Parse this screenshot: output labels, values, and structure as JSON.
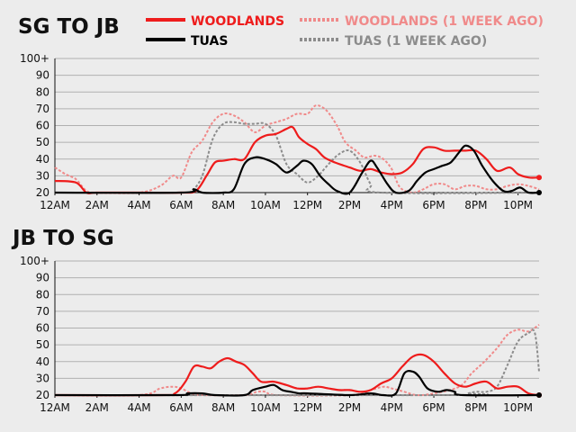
{
  "legend": [
    {
      "label": "WOODLANDS",
      "color": "#ee1c1c",
      "dashed": false
    },
    {
      "label": "WOODLANDS (1 WEEK AGO)",
      "color": "#f08a8a",
      "dashed": true
    },
    {
      "label": "TUAS",
      "color": "#000000",
      "dashed": false
    },
    {
      "label": "TUAS (1 WEEK AGO)",
      "color": "#8c8c8c",
      "dashed": true
    }
  ],
  "chart_data": [
    {
      "type": "line",
      "title": "SG TO JB",
      "x_ticks": [
        "12AM",
        "2AM",
        "4AM",
        "6AM",
        "8AM",
        "10AM",
        "12PM",
        "2PM",
        "4PM",
        "6PM",
        "8PM",
        "10PM"
      ],
      "y_ticks": [
        "20",
        "30",
        "40",
        "50",
        "60",
        "70",
        "80",
        "90",
        "100+"
      ],
      "ylim": [
        20,
        100
      ],
      "grid": true,
      "series": [
        {
          "name": "WOODLANDS",
          "color": "#ee1c1c",
          "dashed": false,
          "end_marker": true,
          "values": [
            [
              0,
              27
            ],
            [
              1,
              26
            ],
            [
              1.5,
              20
            ],
            [
              2,
              20
            ],
            [
              4,
              20
            ],
            [
              6,
              20
            ],
            [
              6.7,
              21
            ],
            [
              7.2,
              30
            ],
            [
              7.6,
              38
            ],
            [
              8,
              39
            ],
            [
              8.5,
              40
            ],
            [
              9,
              40
            ],
            [
              9.5,
              50
            ],
            [
              10,
              54
            ],
            [
              10.5,
              55
            ],
            [
              11,
              58
            ],
            [
              11.3,
              59
            ],
            [
              11.6,
              53
            ],
            [
              12,
              49
            ],
            [
              12.4,
              46
            ],
            [
              12.8,
              41
            ],
            [
              13.3,
              38
            ],
            [
              14,
              35
            ],
            [
              14.5,
              33
            ],
            [
              15,
              34
            ],
            [
              15.5,
              32
            ],
            [
              16,
              31
            ],
            [
              16.5,
              32
            ],
            [
              17,
              37
            ],
            [
              17.5,
              46
            ],
            [
              18,
              47
            ],
            [
              18.5,
              45
            ],
            [
              19,
              45
            ],
            [
              19.5,
              45
            ],
            [
              20,
              45
            ],
            [
              20.5,
              40
            ],
            [
              21,
              33
            ],
            [
              21.6,
              35
            ],
            [
              22,
              31
            ],
            [
              22.5,
              29
            ],
            [
              23,
              29
            ]
          ]
        },
        {
          "name": "WOODLANDS (1 WEEK AGO)",
          "color": "#f08a8a",
          "dashed": true,
          "end_marker": false,
          "values": [
            [
              0,
              35
            ],
            [
              0.5,
              31
            ],
            [
              1,
              28
            ],
            [
              1.5,
              21
            ],
            [
              2,
              20
            ],
            [
              4,
              20
            ],
            [
              5,
              24
            ],
            [
              5.6,
              30
            ],
            [
              6,
              29
            ],
            [
              6.5,
              44
            ],
            [
              7,
              51
            ],
            [
              7.5,
              62
            ],
            [
              8,
              67
            ],
            [
              8.5,
              66
            ],
            [
              9,
              62
            ],
            [
              9.5,
              56
            ],
            [
              10,
              60
            ],
            [
              10.5,
              62
            ],
            [
              11,
              64
            ],
            [
              11.5,
              67
            ],
            [
              12,
              67
            ],
            [
              12.4,
              72
            ],
            [
              12.9,
              69
            ],
            [
              13.4,
              60
            ],
            [
              13.8,
              50
            ],
            [
              14.3,
              45
            ],
            [
              14.7,
              41
            ],
            [
              15.2,
              42
            ],
            [
              15.6,
              40
            ],
            [
              16,
              34
            ],
            [
              16.4,
              23
            ],
            [
              17,
              20
            ],
            [
              17.5,
              22
            ],
            [
              18,
              25
            ],
            [
              18.5,
              25
            ],
            [
              19,
              22
            ],
            [
              19.5,
              24
            ],
            [
              20,
              24
            ],
            [
              20.5,
              22
            ],
            [
              21,
              22
            ],
            [
              21.5,
              24
            ],
            [
              22,
              25
            ],
            [
              22.5,
              24
            ],
            [
              23,
              22
            ]
          ]
        },
        {
          "name": "TUAS",
          "color": "#000000",
          "dashed": false,
          "end_marker": true,
          "values": [
            [
              0,
              20
            ],
            [
              6,
              20
            ],
            [
              6.6,
              22
            ],
            [
              7,
              20
            ],
            [
              8,
              20
            ],
            [
              8.5,
              22
            ],
            [
              9,
              37
            ],
            [
              9.5,
              41
            ],
            [
              10,
              40
            ],
            [
              10.5,
              37
            ],
            [
              11,
              32
            ],
            [
              11.5,
              36
            ],
            [
              11.8,
              39
            ],
            [
              12.2,
              37
            ],
            [
              12.6,
              30
            ],
            [
              13,
              25
            ],
            [
              13.4,
              21
            ],
            [
              14,
              20
            ],
            [
              14.6,
              32
            ],
            [
              15,
              39
            ],
            [
              15.3,
              35
            ],
            [
              15.8,
              25
            ],
            [
              16.2,
              20
            ],
            [
              16.8,
              21
            ],
            [
              17.2,
              27
            ],
            [
              17.6,
              32
            ],
            [
              18,
              34
            ],
            [
              18.4,
              36
            ],
            [
              18.8,
              38
            ],
            [
              19.2,
              44
            ],
            [
              19.5,
              48
            ],
            [
              19.9,
              45
            ],
            [
              20.3,
              36
            ],
            [
              20.8,
              27
            ],
            [
              21.3,
              21
            ],
            [
              21.7,
              21
            ],
            [
              22.1,
              23
            ],
            [
              22.5,
              20
            ],
            [
              23,
              20
            ]
          ]
        },
        {
          "name": "TUAS (1 WEEK AGO)",
          "color": "#8c8c8c",
          "dashed": true,
          "end_marker": false,
          "values": [
            [
              0,
              20
            ],
            [
              6,
              20
            ],
            [
              6.5,
              21
            ],
            [
              7,
              30
            ],
            [
              7.5,
              52
            ],
            [
              8,
              61
            ],
            [
              8.5,
              62
            ],
            [
              9,
              61
            ],
            [
              9.5,
              61
            ],
            [
              10,
              61
            ],
            [
              10.5,
              54
            ],
            [
              11,
              37
            ],
            [
              11.5,
              31
            ],
            [
              12,
              26
            ],
            [
              12.5,
              30
            ],
            [
              13,
              37
            ],
            [
              13.5,
              43
            ],
            [
              14,
              45
            ],
            [
              14.5,
              38
            ],
            [
              15,
              25
            ],
            [
              15.5,
              20
            ],
            [
              23,
              20
            ]
          ]
        }
      ]
    },
    {
      "type": "line",
      "title": "JB TO SG",
      "x_ticks": [
        "12AM",
        "2AM",
        "4AM",
        "6AM",
        "8AM",
        "10AM",
        "12PM",
        "2PM",
        "4PM",
        "6PM",
        "8PM",
        "10PM"
      ],
      "y_ticks": [
        "20",
        "30",
        "40",
        "50",
        "60",
        "70",
        "80",
        "90",
        "100+"
      ],
      "ylim": [
        20,
        100
      ],
      "grid": true,
      "series": [
        {
          "name": "WOODLANDS",
          "color": "#ee1c1c",
          "dashed": false,
          "end_marker": true,
          "values": [
            [
              0,
              20
            ],
            [
              5,
              20
            ],
            [
              5.7,
              21
            ],
            [
              6.2,
              28
            ],
            [
              6.6,
              37
            ],
            [
              7,
              37
            ],
            [
              7.4,
              36
            ],
            [
              7.8,
              40
            ],
            [
              8.2,
              42
            ],
            [
              8.6,
              40
            ],
            [
              9,
              38
            ],
            [
              9.4,
              33
            ],
            [
              9.8,
              28
            ],
            [
              10.4,
              28
            ],
            [
              11,
              26
            ],
            [
              11.5,
              24
            ],
            [
              12,
              24
            ],
            [
              12.5,
              25
            ],
            [
              13,
              24
            ],
            [
              13.5,
              23
            ],
            [
              14,
              23
            ],
            [
              14.5,
              22
            ],
            [
              15,
              23
            ],
            [
              15.5,
              27
            ],
            [
              16,
              30
            ],
            [
              16.5,
              37
            ],
            [
              17,
              43
            ],
            [
              17.5,
              44
            ],
            [
              18,
              40
            ],
            [
              18.5,
              33
            ],
            [
              19,
              27
            ],
            [
              19.5,
              25
            ],
            [
              20,
              27
            ],
            [
              20.5,
              28
            ],
            [
              21,
              24
            ],
            [
              21.5,
              25
            ],
            [
              22,
              25
            ],
            [
              22.5,
              21
            ],
            [
              23,
              20
            ]
          ]
        },
        {
          "name": "WOODLANDS (1 WEEK AGO)",
          "color": "#f08a8a",
          "dashed": true,
          "end_marker": false,
          "values": [
            [
              0,
              20
            ],
            [
              4,
              20
            ],
            [
              5,
              24
            ],
            [
              5.6,
              25
            ],
            [
              6,
              24
            ],
            [
              6.5,
              21
            ],
            [
              7,
              20
            ],
            [
              9,
              20
            ],
            [
              9.6,
              22
            ],
            [
              10,
              22
            ],
            [
              10.6,
              20
            ],
            [
              14,
              20
            ],
            [
              15,
              23
            ],
            [
              15.6,
              25
            ],
            [
              16,
              24
            ],
            [
              16.6,
              22
            ],
            [
              17.2,
              20
            ],
            [
              18,
              21
            ],
            [
              19.2,
              25
            ],
            [
              19.8,
              33
            ],
            [
              20.4,
              40
            ],
            [
              21,
              48
            ],
            [
              21.5,
              56
            ],
            [
              22,
              59
            ],
            [
              22.5,
              58
            ],
            [
              23,
              62
            ]
          ]
        },
        {
          "name": "TUAS",
          "color": "#000000",
          "dashed": false,
          "end_marker": true,
          "values": [
            [
              0,
              20
            ],
            [
              5.8,
              20
            ],
            [
              6.3,
              21
            ],
            [
              7,
              21
            ],
            [
              7.6,
              20
            ],
            [
              9,
              20
            ],
            [
              9.4,
              23
            ],
            [
              10,
              25
            ],
            [
              10.4,
              26
            ],
            [
              10.8,
              23
            ],
            [
              11.2,
              22
            ],
            [
              11.6,
              21
            ],
            [
              12,
              21
            ],
            [
              14,
              20
            ],
            [
              15,
              21
            ],
            [
              15.6,
              20
            ],
            [
              16.2,
              21
            ],
            [
              16.6,
              33
            ],
            [
              17,
              34
            ],
            [
              17.3,
              31
            ],
            [
              17.7,
              24
            ],
            [
              18.2,
              22
            ],
            [
              18.6,
              23
            ],
            [
              19,
              22
            ],
            [
              19.4,
              20
            ],
            [
              23,
              20
            ]
          ]
        },
        {
          "name": "TUAS (1 WEEK AGO)",
          "color": "#8c8c8c",
          "dashed": true,
          "end_marker": false,
          "values": [
            [
              0,
              20
            ],
            [
              19,
              20
            ],
            [
              19.6,
              21
            ],
            [
              20,
              22
            ],
            [
              20.5,
              22
            ],
            [
              21,
              25
            ],
            [
              21.5,
              38
            ],
            [
              22,
              52
            ],
            [
              22.5,
              57
            ],
            [
              22.8,
              57
            ],
            [
              23,
              34
            ]
          ]
        }
      ]
    }
  ]
}
